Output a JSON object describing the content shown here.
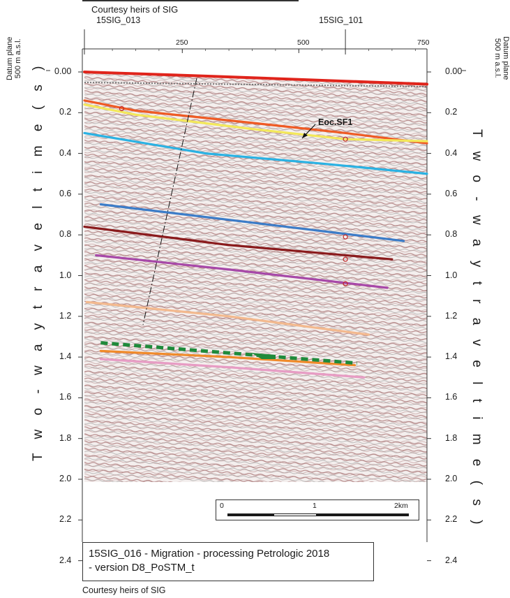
{
  "header": {
    "courtesy": "Courtesy heirs of SIG"
  },
  "wells": [
    {
      "name": "15SIG_013",
      "cdp": 40
    },
    {
      "name": "15SIG_101",
      "cdp": 600
    }
  ],
  "cdp_axis": {
    "ticks": [
      "250",
      "500",
      "750"
    ],
    "min": 40,
    "max": 775
  },
  "time_axis": {
    "title_left": "T w o - w a y   t r a v e l t i m e   ( s )",
    "title_right": "T w o - w a y   t r a v e l t i m e   ( s )",
    "ticks": [
      "0.00",
      "0.2",
      "0.4",
      "0.6",
      "0.8",
      "1.0",
      "1.2",
      "1.4",
      "1.6",
      "1.8",
      "2.0",
      "2.2",
      "2.4"
    ],
    "min": 0.0,
    "max": 2.55
  },
  "datum": {
    "line1": "Datum plane",
    "line2": "500 m a.s.l."
  },
  "horizon_label": "Eoc.SF1",
  "horizons": [
    {
      "id": "red",
      "color": "#e0241b",
      "pts": [
        [
          40,
          0.0
        ],
        [
          300,
          0.02
        ],
        [
          775,
          0.06
        ]
      ]
    },
    {
      "id": "orange-red",
      "color": "#ef5a24",
      "pts": [
        [
          40,
          0.14
        ],
        [
          150,
          0.19
        ],
        [
          400,
          0.25
        ],
        [
          600,
          0.3
        ],
        [
          775,
          0.35
        ]
      ]
    },
    {
      "id": "yellow",
      "color": "#f3e85a",
      "pts": [
        [
          40,
          0.16
        ],
        [
          150,
          0.21
        ],
        [
          400,
          0.28
        ],
        [
          600,
          0.33
        ],
        [
          775,
          0.34
        ]
      ]
    },
    {
      "id": "cyan",
      "color": "#2ab2e3",
      "pts": [
        [
          40,
          0.3
        ],
        [
          300,
          0.4
        ],
        [
          550,
          0.45
        ],
        [
          775,
          0.5
        ]
      ]
    },
    {
      "id": "blue",
      "color": "#3b7cc8",
      "pts": [
        [
          75,
          0.65
        ],
        [
          400,
          0.74
        ],
        [
          725,
          0.83
        ]
      ]
    },
    {
      "id": "maroon",
      "color": "#8a1a1c",
      "pts": [
        [
          40,
          0.76
        ],
        [
          350,
          0.85
        ],
        [
          700,
          0.92
        ]
      ]
    },
    {
      "id": "purple",
      "color": "#a748a8",
      "pts": [
        [
          65,
          0.9
        ],
        [
          350,
          0.97
        ],
        [
          690,
          1.06
        ]
      ]
    },
    {
      "id": "tan",
      "color": "#f3b98e",
      "pts": [
        [
          45,
          1.13
        ],
        [
          350,
          1.2
        ],
        [
          650,
          1.29
        ]
      ]
    },
    {
      "id": "orange",
      "color": "#f08a2a",
      "pts": [
        [
          75,
          1.37
        ],
        [
          350,
          1.4
        ],
        [
          620,
          1.44
        ]
      ]
    },
    {
      "id": "pink",
      "color": "#e79cc4",
      "pts": [
        [
          75,
          1.41
        ],
        [
          350,
          1.45
        ],
        [
          640,
          1.5
        ]
      ]
    }
  ],
  "dashed_green": {
    "color": "#1f8a3b",
    "pts": [
      [
        75,
        1.33
      ],
      [
        625,
        1.43
      ]
    ]
  },
  "scale_bar": {
    "labels": [
      "0",
      "1",
      "2km"
    ]
  },
  "caption": {
    "line1": "15SIG_016 - Migration - processing Petrologic 2018",
    "line2": "- version D8_PoSTM_t"
  },
  "footer": {
    "courtesy": "Courtesy heirs of SIG"
  }
}
